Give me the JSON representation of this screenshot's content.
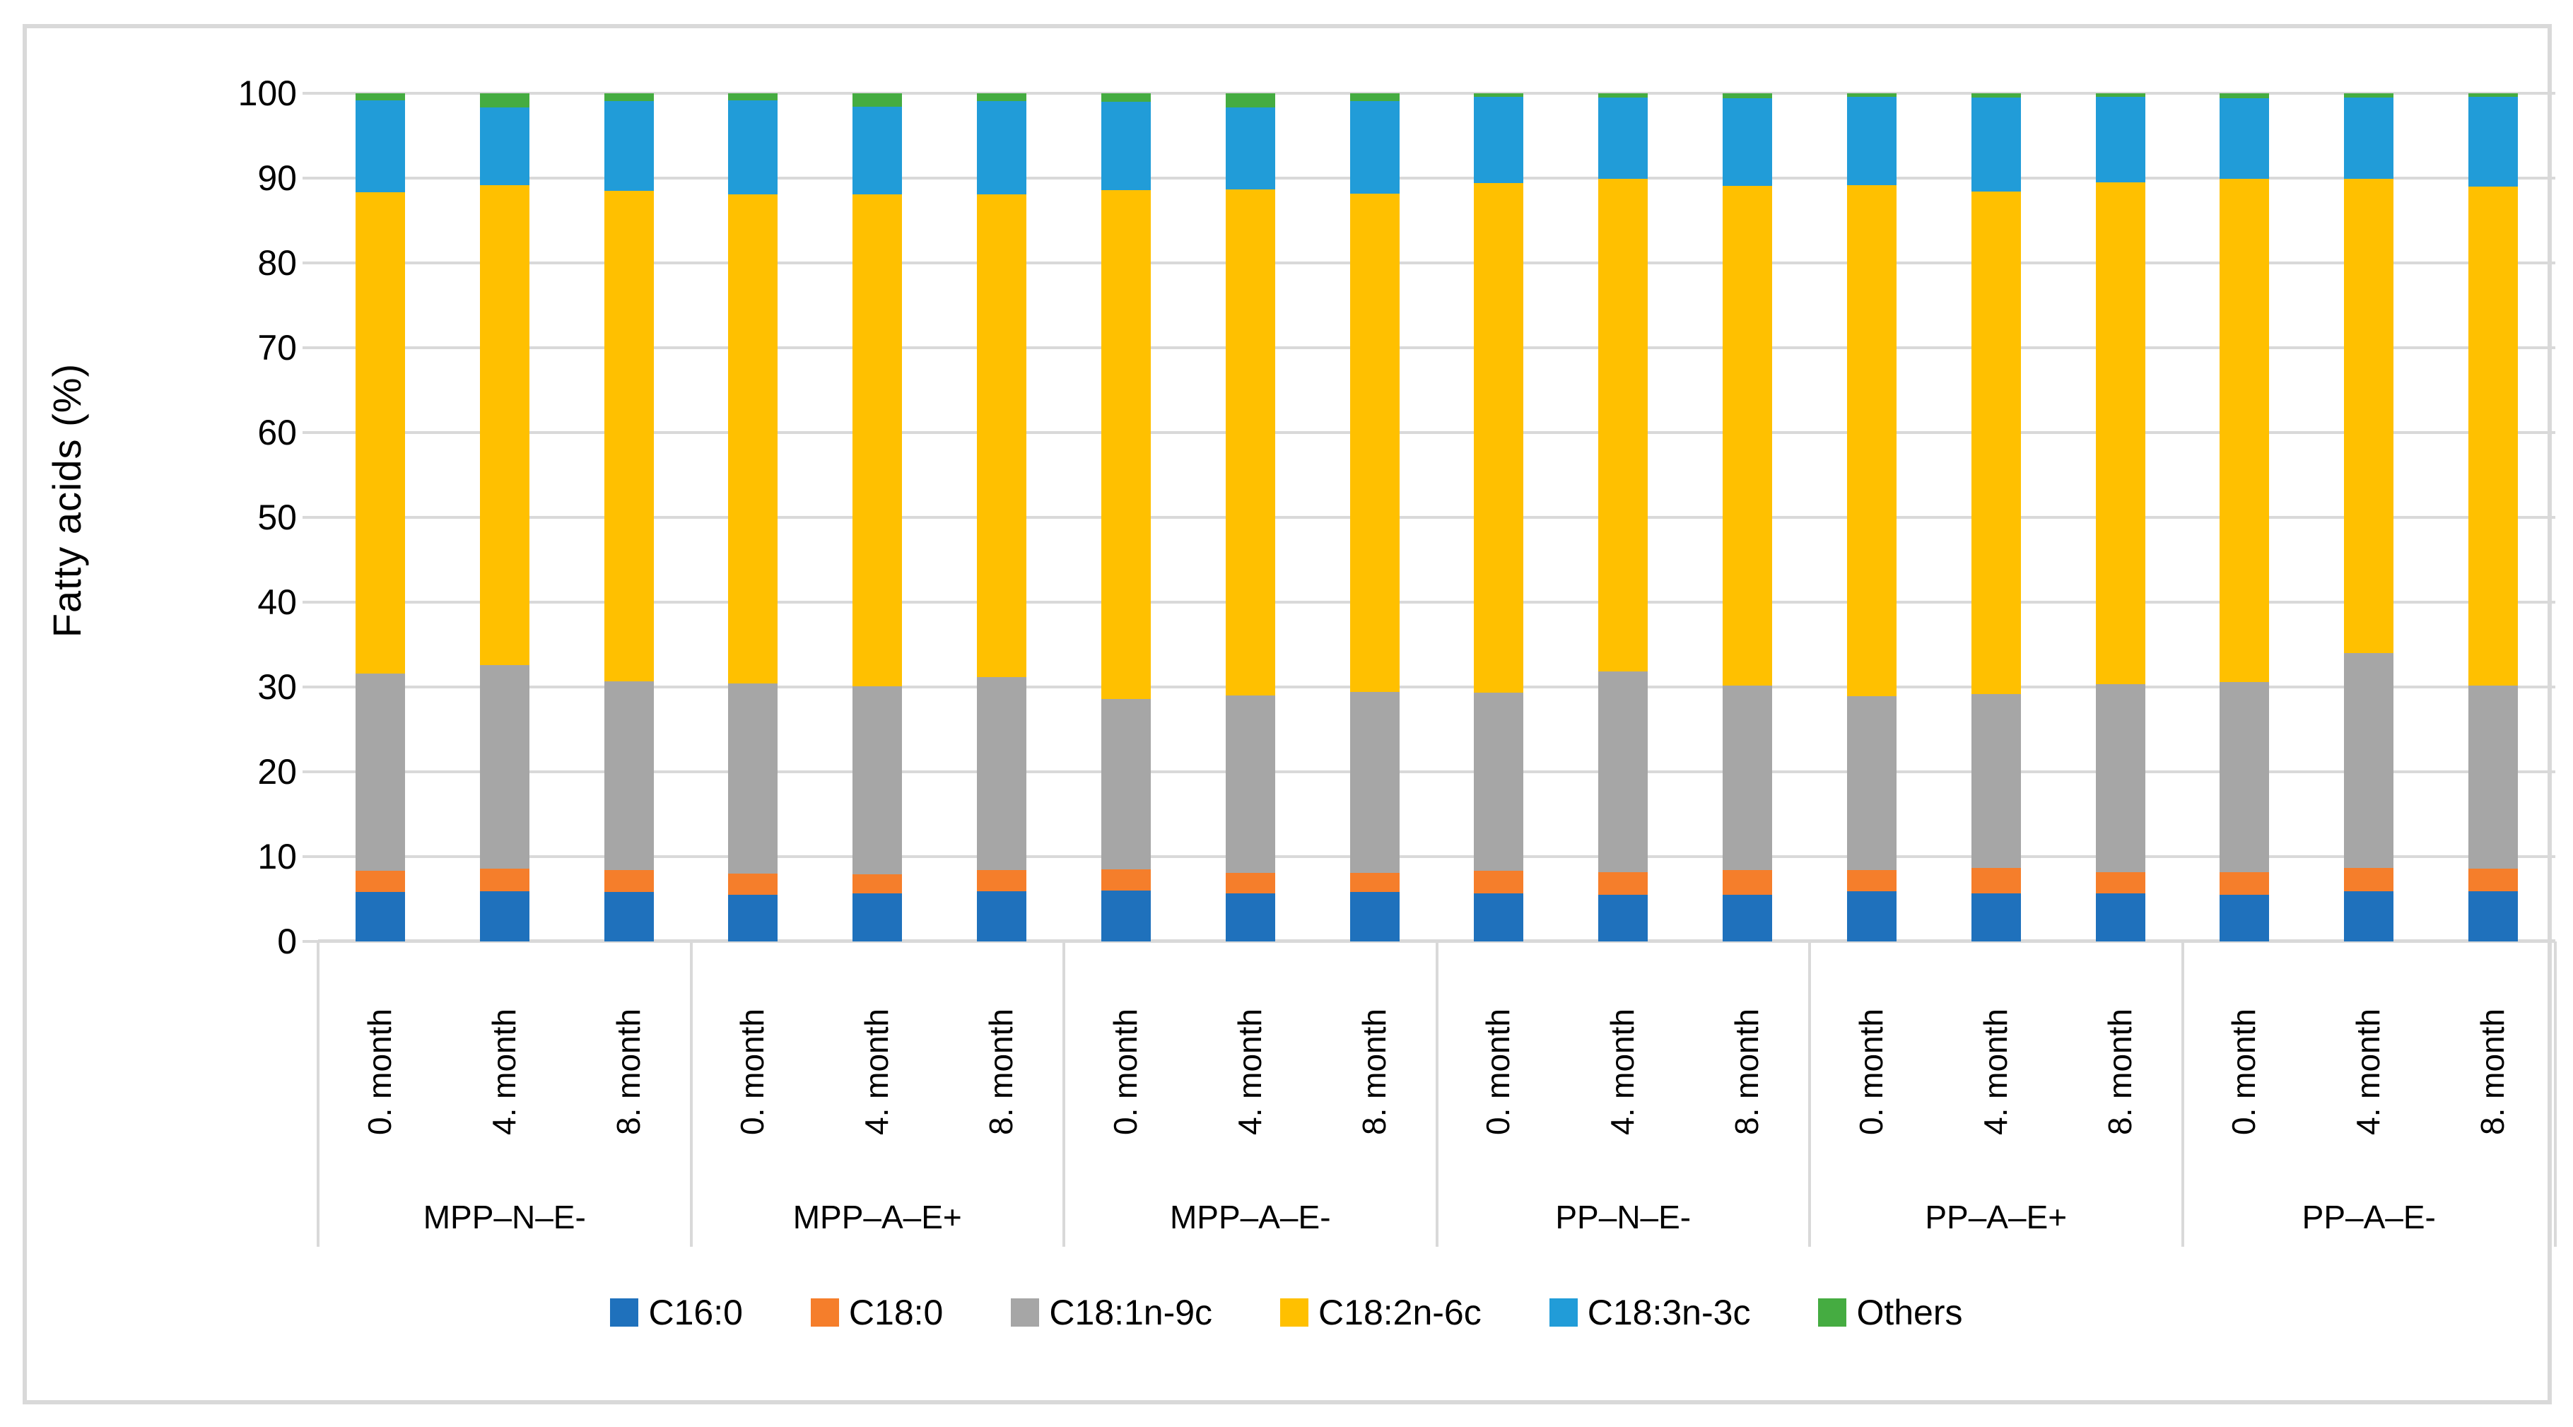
{
  "figure": {
    "y_axis_title": "Fatty acids (%)",
    "border_color": "#D9D9D9",
    "gridline_color": "#D9D9D9",
    "text_color": "#000000",
    "background": "#ffffff"
  },
  "chart_data": {
    "type": "bar",
    "stacked": true,
    "title": "",
    "xlabel": "",
    "ylabel": "Fatty acids (%)",
    "ylim": [
      0,
      100
    ],
    "y_tick_step": 10,
    "y_tick_labels": [
      "0",
      "10",
      "20",
      "30",
      "40",
      "50",
      "60",
      "70",
      "80",
      "90",
      "100"
    ],
    "grid": true,
    "legend_position": "bottom",
    "groups": [
      "MPP–N–E-",
      "MPP–A–E+",
      "MPP–A–E-",
      "PP–N–E-",
      "PP–A–E+",
      "PP–A–E-"
    ],
    "categories_per_group": [
      "0. month",
      "4. month",
      "8. month"
    ],
    "series": [
      {
        "name": "C16:0",
        "color": "#1F71BC",
        "values": [
          5.8,
          5.9,
          5.8,
          5.5,
          5.7,
          5.9,
          6.0,
          5.7,
          5.8,
          5.7,
          5.5,
          5.5,
          5.9,
          5.7,
          5.7,
          5.5,
          5.9,
          5.9
        ]
      },
      {
        "name": "C18:0",
        "color": "#F57E2B",
        "values": [
          2.5,
          2.7,
          2.6,
          2.5,
          2.2,
          2.5,
          2.5,
          2.4,
          2.3,
          2.6,
          2.7,
          2.9,
          2.5,
          3.0,
          2.5,
          2.7,
          2.8,
          2.7
        ]
      },
      {
        "name": "C18:1n-9c",
        "color": "#A6A6A6",
        "values": [
          23.3,
          24.0,
          22.3,
          22.4,
          22.2,
          22.8,
          20.1,
          20.9,
          21.3,
          21.0,
          23.6,
          21.8,
          20.5,
          20.5,
          22.1,
          22.4,
          25.3,
          21.6
        ]
      },
      {
        "name": "C18:2n-6c",
        "color": "#FFC000",
        "values": [
          56.7,
          56.6,
          57.8,
          57.7,
          58.0,
          56.9,
          60.0,
          59.7,
          58.8,
          60.1,
          58.1,
          58.9,
          60.3,
          59.2,
          59.2,
          59.3,
          55.9,
          58.8
        ]
      },
      {
        "name": "C18:3n-3c",
        "color": "#219CD8",
        "values": [
          10.9,
          9.1,
          10.6,
          11.1,
          10.3,
          11.0,
          10.4,
          9.6,
          10.9,
          10.2,
          9.6,
          10.3,
          10.4,
          11.1,
          10.1,
          9.5,
          9.6,
          10.6
        ]
      },
      {
        "name": "Others",
        "color": "#45AC41",
        "values": [
          0.8,
          1.7,
          0.9,
          0.8,
          1.6,
          0.9,
          1.0,
          1.7,
          0.9,
          0.4,
          0.5,
          0.6,
          0.4,
          0.5,
          0.4,
          0.6,
          0.5,
          0.4
        ]
      }
    ]
  }
}
